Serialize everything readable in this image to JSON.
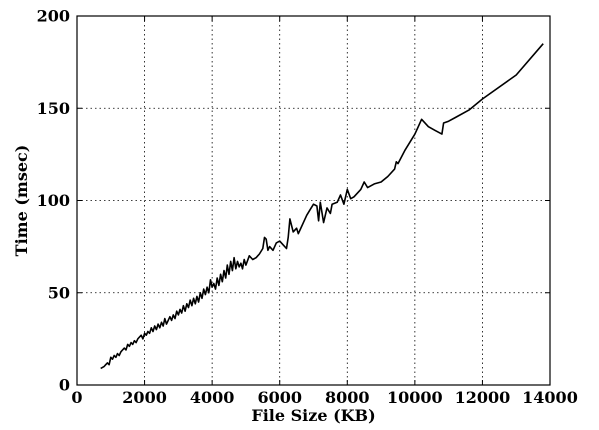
{
  "chart_data": {
    "type": "line",
    "xlabel": "File Size (KB)",
    "ylabel": "Time (msec)",
    "xlim": [
      0,
      14000
    ],
    "ylim": [
      0,
      200
    ],
    "xticks": [
      0,
      2000,
      4000,
      6000,
      8000,
      10000,
      12000,
      14000
    ],
    "yticks": [
      0,
      50,
      100,
      150,
      200
    ],
    "xtick_labels": [
      "0",
      "2000",
      "4000",
      "6000",
      "8000",
      "10000",
      "12000",
      "14000"
    ],
    "ytick_labels": [
      "0",
      "50",
      "100",
      "150",
      "200"
    ],
    "grid": true,
    "series": [
      {
        "color": "#000000",
        "x": [
          700,
          800,
          850,
          900,
          950,
          1000,
          1050,
          1100,
          1150,
          1200,
          1250,
          1300,
          1350,
          1400,
          1450,
          1500,
          1550,
          1600,
          1650,
          1700,
          1750,
          1800,
          1850,
          1900,
          1950,
          2000,
          2050,
          2100,
          2150,
          2200,
          2250,
          2300,
          2350,
          2400,
          2450,
          2500,
          2550,
          2600,
          2650,
          2700,
          2750,
          2800,
          2850,
          2900,
          2950,
          3000,
          3050,
          3100,
          3150,
          3200,
          3250,
          3300,
          3350,
          3400,
          3450,
          3500,
          3550,
          3600,
          3650,
          3700,
          3750,
          3800,
          3850,
          3900,
          3950,
          4000,
          4050,
          4100,
          4150,
          4200,
          4250,
          4300,
          4350,
          4400,
          4450,
          4500,
          4550,
          4600,
          4650,
          4700,
          4750,
          4800,
          4850,
          4900,
          4950,
          5000,
          5100,
          5200,
          5300,
          5400,
          5500,
          5550,
          5600,
          5650,
          5700,
          5800,
          5900,
          6000,
          6100,
          6200,
          6250,
          6300,
          6400,
          6500,
          6550,
          6600,
          6700,
          6800,
          6900,
          7000,
          7100,
          7150,
          7200,
          7300,
          7400,
          7500,
          7550,
          7700,
          7800,
          7900,
          8000,
          8100,
          8200,
          8400,
          8500,
          8600,
          8800,
          9000,
          9200,
          9400,
          9450,
          9500,
          9700,
          10000,
          10200,
          10400,
          10600,
          10800,
          10850,
          11000,
          11200,
          11600,
          12000,
          13000,
          13800
        ],
        "values": [
          9,
          10,
          11,
          12,
          11,
          15,
          14,
          16,
          15,
          17,
          16,
          18,
          19,
          20,
          19,
          22,
          21,
          23,
          22,
          24,
          23,
          25,
          26,
          27,
          25,
          28,
          27,
          29,
          28,
          31,
          29,
          32,
          30,
          33,
          31,
          34,
          32,
          36,
          33,
          35,
          37,
          35,
          38,
          36,
          40,
          38,
          41,
          39,
          43,
          40,
          44,
          42,
          46,
          43,
          47,
          44,
          48,
          45,
          50,
          47,
          52,
          49,
          53,
          50,
          57,
          53,
          55,
          52,
          58,
          54,
          60,
          56,
          62,
          58,
          65,
          60,
          67,
          62,
          69,
          63,
          67,
          64,
          66,
          63,
          68,
          65,
          70,
          68,
          69,
          71,
          74,
          80,
          79,
          73,
          75,
          73,
          77,
          78,
          76,
          74,
          80,
          90,
          83,
          85,
          82,
          84,
          88,
          92,
          95,
          98,
          97,
          89,
          99,
          88,
          96,
          93,
          98,
          99,
          103,
          98,
          106,
          101,
          102,
          106,
          110,
          107,
          109,
          110,
          113,
          117,
          121,
          120,
          127,
          136,
          144,
          140,
          138,
          136,
          142,
          143,
          145,
          149,
          155,
          168,
          185
        ]
      }
    ]
  }
}
